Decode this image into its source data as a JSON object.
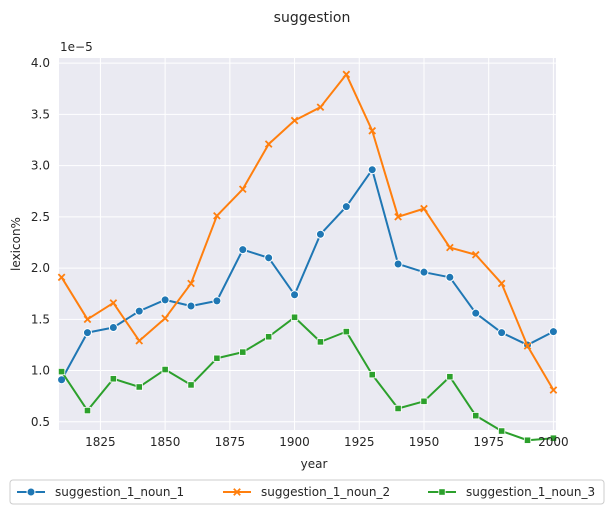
{
  "chart_data": {
    "type": "line",
    "title": "suggestion",
    "xlabel": "year",
    "ylabel": "lexicon%",
    "y_scale_label": "1e−5",
    "xlim": [
      1809,
      2001
    ],
    "ylim": [
      0.42,
      4.05
    ],
    "x_ticks": [
      1825,
      1850,
      1875,
      1900,
      1925,
      1950,
      1975,
      2000
    ],
    "y_ticks": [
      0.5,
      1.0,
      1.5,
      2.0,
      2.5,
      3.0,
      3.5,
      4.0
    ],
    "x_tick_labels": [
      "1825",
      "1850",
      "1875",
      "1900",
      "1925",
      "1950",
      "1975",
      "2000"
    ],
    "y_tick_labels": [
      "0.5",
      "1.0",
      "1.5",
      "2.0",
      "2.5",
      "3.0",
      "3.5",
      "4.0"
    ],
    "grid": true,
    "legend_position": "bottom",
    "x": [
      1810,
      1820,
      1830,
      1840,
      1850,
      1860,
      1870,
      1880,
      1890,
      1900,
      1910,
      1920,
      1930,
      1940,
      1950,
      1960,
      1970,
      1980,
      1990,
      2000
    ],
    "series": [
      {
        "name": "suggestion_1_noun_1",
        "color": "#1f77b4",
        "marker": "circle",
        "values": [
          0.91,
          1.37,
          1.42,
          1.58,
          1.69,
          1.63,
          1.68,
          2.18,
          2.1,
          1.74,
          2.33,
          2.6,
          2.96,
          2.04,
          1.96,
          1.91,
          1.56,
          1.37,
          1.25,
          1.38
        ]
      },
      {
        "name": "suggestion_1_noun_2",
        "color": "#ff7f0e",
        "marker": "x",
        "values": [
          1.91,
          1.5,
          1.66,
          1.29,
          1.51,
          1.85,
          2.51,
          2.77,
          3.21,
          3.44,
          3.57,
          3.89,
          3.34,
          2.5,
          2.58,
          2.2,
          2.13,
          1.85,
          1.24,
          0.81
        ]
      },
      {
        "name": "suggestion_1_noun_3",
        "color": "#2ca02c",
        "marker": "square",
        "values": [
          0.99,
          0.61,
          0.92,
          0.84,
          1.01,
          0.86,
          1.12,
          1.18,
          1.33,
          1.52,
          1.28,
          1.38,
          0.96,
          0.63,
          0.7,
          0.94,
          0.56,
          0.41,
          0.32,
          0.34
        ]
      }
    ]
  }
}
